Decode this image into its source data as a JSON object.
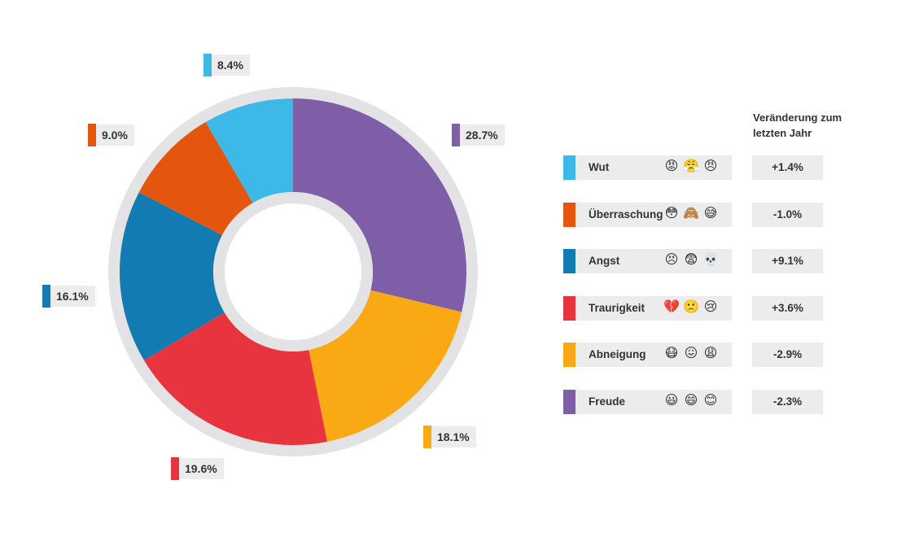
{
  "chart_data": {
    "type": "pie",
    "categories": [
      "Freude",
      "Abneigung",
      "Traurigkeit",
      "Angst",
      "Überraschung",
      "Wut"
    ],
    "values": [
      28.7,
      18.1,
      19.6,
      16.1,
      9.0,
      8.4
    ],
    "value_labels": [
      "28.7%",
      "18.1%",
      "19.6%",
      "16.1%",
      "9.0%",
      "8.4%"
    ],
    "colors": [
      "#7f5ea8",
      "#f9a914",
      "#e8343e",
      "#127bb2",
      "#e4560e",
      "#3db9e8"
    ],
    "ring_color": "#e3e3e6",
    "legend_placement": "right"
  },
  "legend": {
    "change_header": "Veränderung zum letzten Jahr",
    "items": [
      {
        "name": "Wut",
        "color": "#3db9e8",
        "change": "+1.4%",
        "emojis": [
          "😡",
          "😤",
          "😠"
        ]
      },
      {
        "name": "Überraschung",
        "color": "#e4560e",
        "change": "-1.0%",
        "emojis": [
          "😳",
          "🙈",
          "😅"
        ]
      },
      {
        "name": "Angst",
        "color": "#127bb2",
        "change": "+9.1%",
        "emojis": [
          "😣",
          "😨",
          "💀"
        ]
      },
      {
        "name": "Traurigkeit",
        "color": "#e8343e",
        "change": "+3.6%",
        "emojis": [
          "💔",
          "🙁",
          "😢"
        ]
      },
      {
        "name": "Abneigung",
        "color": "#f9a914",
        "change": "-2.9%",
        "emojis": [
          "😷",
          "😖",
          "😩"
        ]
      },
      {
        "name": "Freude",
        "color": "#7f5ea8",
        "change": "-2.3%",
        "emojis": [
          "😃",
          "😄",
          "😊"
        ]
      }
    ]
  }
}
